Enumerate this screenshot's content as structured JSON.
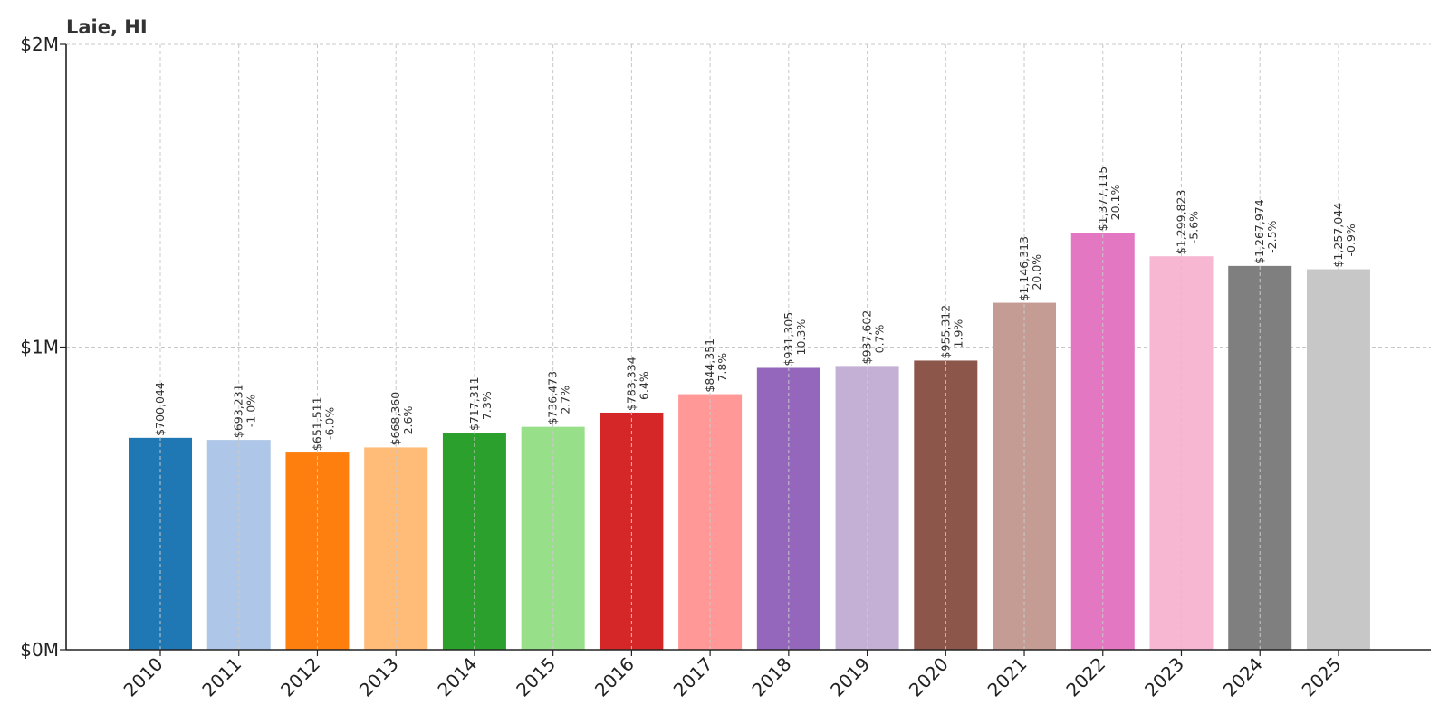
{
  "chart_data": {
    "type": "bar",
    "title": "Laie, HI",
    "xlabel": "",
    "ylabel": "",
    "ylim": [
      0,
      2000000
    ],
    "yticks": [
      {
        "value": 0,
        "label": "$0M"
      },
      {
        "value": 1000000,
        "label": "$1M"
      },
      {
        "value": 2000000,
        "label": "$2M"
      }
    ],
    "grid": true,
    "categories": [
      "2010",
      "2011",
      "2012",
      "2013",
      "2014",
      "2015",
      "2016",
      "2017",
      "2018",
      "2019",
      "2020",
      "2021",
      "2022",
      "2023",
      "2024",
      "2025"
    ],
    "values": [
      700044,
      693231,
      651511,
      668360,
      717311,
      736473,
      783334,
      844351,
      931305,
      937602,
      955312,
      1146313,
      1377115,
      1299823,
      1267974,
      1257044
    ],
    "value_labels": [
      "$700,044",
      "$693,231",
      "$651,511",
      "$668,360",
      "$717,311",
      "$736,473",
      "$783,334",
      "$844,351",
      "$931,305",
      "$937,602",
      "$955,312",
      "$1,146,313",
      "$1,377,115",
      "$1,299,823",
      "$1,267,974",
      "$1,257,044"
    ],
    "change_labels": [
      "",
      "-1.0%",
      "-6.0%",
      "2.6%",
      "7.3%",
      "2.7%",
      "6.4%",
      "7.8%",
      "10.3%",
      "0.7%",
      "1.9%",
      "20.0%",
      "20.1%",
      "-5.6%",
      "-2.5%",
      "-0.9%"
    ],
    "colors": [
      "#1f77b4",
      "#aec7e8",
      "#ff7f0e",
      "#ffbb78",
      "#2ca02c",
      "#98df8a",
      "#d62728",
      "#ff9896",
      "#9467bd",
      "#c5b0d5",
      "#8c564b",
      "#c49c94",
      "#e377c2",
      "#f7b6d2",
      "#7f7f7f",
      "#c7c7c7"
    ]
  }
}
